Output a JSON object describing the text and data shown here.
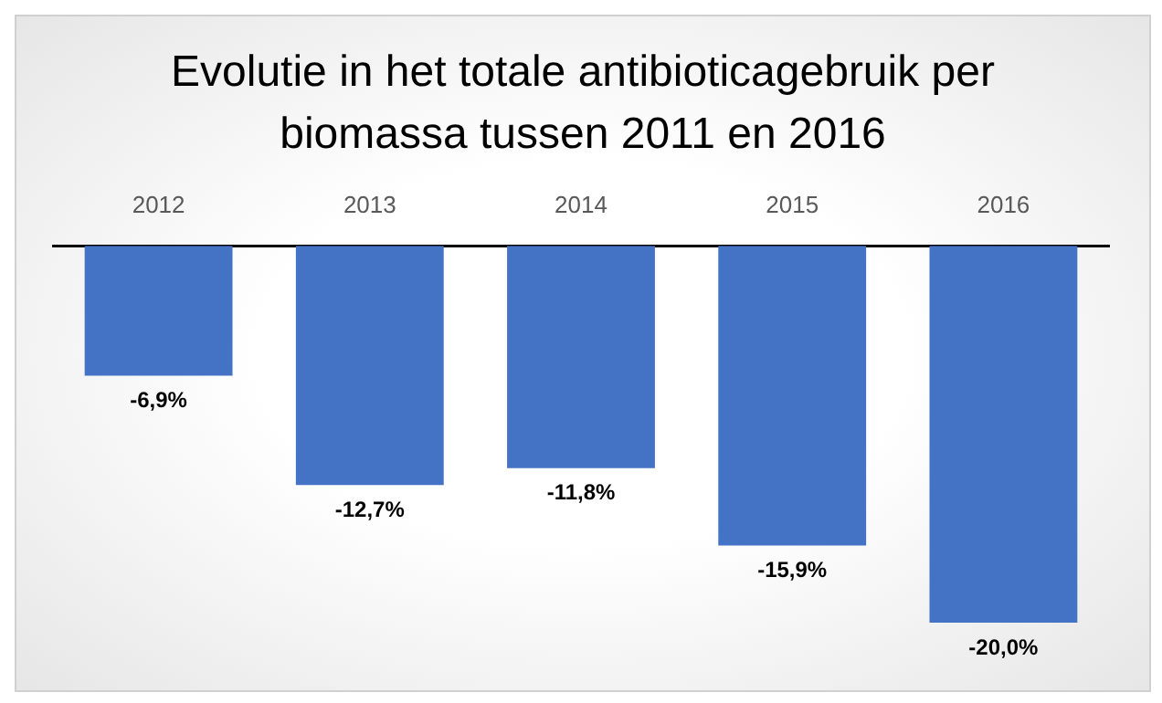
{
  "chart_data": {
    "type": "bar",
    "title": "Evolutie in het totale antibioticagebruik per biomassa tussen 2011 en 2016",
    "categories": [
      "2012",
      "2013",
      "2014",
      "2015",
      "2016"
    ],
    "values": [
      -6.9,
      -12.7,
      -11.8,
      -15.9,
      -20.0
    ],
    "value_labels": [
      "-6,9%",
      "-12,7%",
      "-11,8%",
      "-15,9%",
      "-20,0%"
    ],
    "color": "#4472c4",
    "grid": false,
    "legend": false
  }
}
